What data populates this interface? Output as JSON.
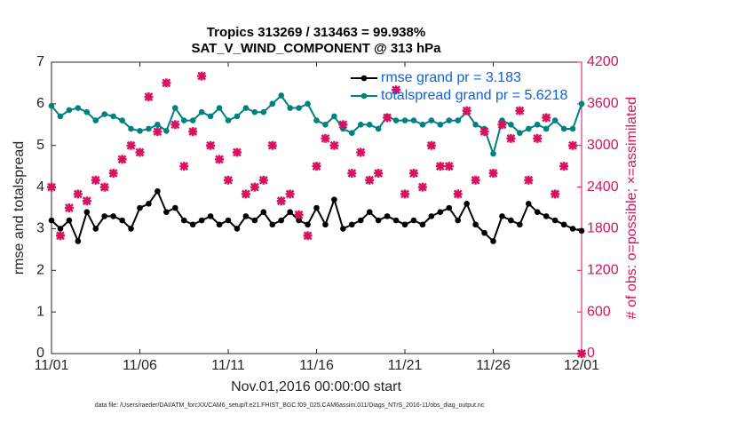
{
  "chart_data": {
    "type": "line",
    "title": "Tropics 313269 / 313463 = 99.938%",
    "subtitle": "SAT_V_WIND_COMPONENT @ 313 hPa",
    "xlabel": "Nov.01,2016 00:00:00 start",
    "ylabel": "rmse and totalspread",
    "y2label": "# of obs: o=possible; ×=assimilated",
    "footnote": "data file: /Users/raeder/DAI/ATM_forcXX/CAM6_setup/f.e21.FHIST_BGC.f09_025.CAM6assim.011/Diags_NTrS_2016-11/obs_diag_output.nc",
    "legend": "top-right",
    "xlim": [
      0,
      30
    ],
    "xticks": [
      {
        "value": 0,
        "label": "11/01"
      },
      {
        "value": 5,
        "label": "11/06"
      },
      {
        "value": 10,
        "label": "11/11"
      },
      {
        "value": 15,
        "label": "11/16"
      },
      {
        "value": 20,
        "label": "11/21"
      },
      {
        "value": 25,
        "label": "11/26"
      },
      {
        "value": 30,
        "label": "12/01"
      }
    ],
    "ylim": [
      0,
      7
    ],
    "yticks": [
      0,
      1,
      2,
      3,
      4,
      5,
      6,
      7
    ],
    "y2lim": [
      0,
      4200
    ],
    "y2ticks": [
      0,
      600,
      1200,
      1800,
      2400,
      3000,
      3600,
      4200
    ],
    "x": [
      0,
      0.5,
      1,
      1.5,
      2,
      2.5,
      3,
      3.5,
      4,
      4.5,
      5,
      5.5,
      6,
      6.5,
      7,
      7.5,
      8,
      8.5,
      9,
      9.5,
      10,
      10.5,
      11,
      11.5,
      12,
      12.5,
      13,
      13.5,
      14,
      14.5,
      15,
      15.5,
      16,
      16.5,
      17,
      17.5,
      18,
      18.5,
      19,
      19.5,
      20,
      20.5,
      21,
      21.5,
      22,
      22.5,
      23,
      23.5,
      24,
      24.5,
      25,
      25.5,
      26,
      26.5,
      27,
      27.5,
      28,
      28.5,
      29,
      29.5,
      30
    ],
    "series": [
      {
        "name": "rmse grand pr = 3.183",
        "color": "#000000",
        "marker": "circle",
        "values": [
          3.2,
          3.0,
          3.2,
          2.7,
          3.4,
          3.0,
          3.3,
          3.3,
          3.2,
          3.0,
          3.5,
          3.6,
          3.9,
          3.4,
          3.5,
          3.2,
          3.1,
          3.2,
          3.3,
          3.1,
          3.2,
          3.0,
          3.3,
          3.2,
          3.4,
          3.1,
          3.2,
          3.4,
          3.2,
          3.1,
          3.5,
          3.1,
          3.7,
          3.0,
          3.1,
          3.2,
          3.4,
          3.2,
          3.3,
          3.2,
          3.1,
          3.2,
          3.1,
          3.3,
          3.4,
          3.5,
          3.2,
          3.6,
          3.1,
          2.9,
          2.7,
          3.3,
          3.2,
          3.1,
          3.6,
          3.4,
          3.3,
          3.2,
          3.1,
          3.0,
          2.95
        ]
      },
      {
        "name": "totalspread grand pr = 5.6218",
        "color": "#008080",
        "marker": "circle",
        "values": [
          5.95,
          5.7,
          5.85,
          5.9,
          5.8,
          5.6,
          5.75,
          5.7,
          5.6,
          5.4,
          5.35,
          5.4,
          5.5,
          5.35,
          5.9,
          5.6,
          5.6,
          5.8,
          5.7,
          5.9,
          5.6,
          5.7,
          5.9,
          5.8,
          5.8,
          6.0,
          6.2,
          5.9,
          5.9,
          6.0,
          5.6,
          5.5,
          5.7,
          5.4,
          5.3,
          5.5,
          5.5,
          5.4,
          5.7,
          5.6,
          5.6,
          5.6,
          5.5,
          5.6,
          5.5,
          5.6,
          5.6,
          5.8,
          5.5,
          5.4,
          4.8,
          5.6,
          5.5,
          5.3,
          5.4,
          5.5,
          5.4,
          5.6,
          5.4,
          5.4,
          6.0
        ]
      },
      {
        "color": "#d6125e",
        "axis": "y2",
        "marker": "cross",
        "line": false,
        "values": [
          2400,
          1700,
          2100,
          2300,
          2200,
          2500,
          2400,
          2600,
          2800,
          3000,
          2900,
          3700,
          3200,
          3900,
          3300,
          2700,
          3200,
          4000,
          3000,
          2800,
          2500,
          2900,
          2300,
          2400,
          2500,
          3000,
          2200,
          2300,
          2000,
          1700,
          2700,
          3100,
          3000,
          3300,
          2600,
          2900,
          2500,
          2600,
          3400,
          3800,
          2300,
          2600,
          2400,
          3000,
          2700,
          2700,
          2300,
          3500,
          2500,
          3200,
          2600,
          3300,
          3100,
          3500,
          2500,
          3100,
          3400,
          2300,
          2700,
          3000,
          0
        ]
      }
    ]
  }
}
